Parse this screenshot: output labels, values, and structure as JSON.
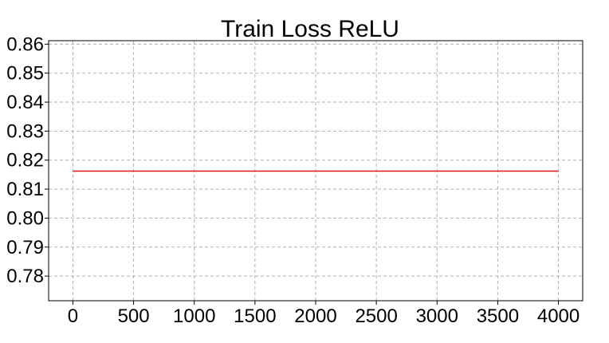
{
  "chart_data": {
    "type": "line",
    "title": "Train Loss ReLU",
    "xlabel": "",
    "ylabel": "",
    "xlim": [
      -200,
      4200
    ],
    "ylim": [
      0.7715,
      0.8612
    ],
    "xticks": [
      0,
      500,
      1000,
      1500,
      2000,
      2500,
      3000,
      3500,
      4000
    ],
    "xtick_labels": [
      "0",
      "500",
      "1000",
      "1500",
      "2000",
      "2500",
      "3000",
      "3500",
      "4000"
    ],
    "yticks": [
      0.78,
      0.79,
      0.8,
      0.81,
      0.82,
      0.83,
      0.84,
      0.85,
      0.86
    ],
    "ytick_labels": [
      "0.78",
      "0.79",
      "0.80",
      "0.81",
      "0.82",
      "0.83",
      "0.84",
      "0.85",
      "0.86"
    ],
    "grid": true,
    "legend": "none",
    "series": [
      {
        "color": "#e8141a",
        "x": [
          0,
          4000
        ],
        "y": [
          0.8162,
          0.8162
        ]
      }
    ]
  }
}
